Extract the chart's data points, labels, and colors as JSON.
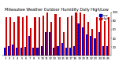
{
  "title": "Milwaukee Weather Outdoor Humidity Daily High/Low",
  "high_values": [
    88,
    88,
    78,
    90,
    88,
    93,
    63,
    88,
    88,
    92,
    100,
    78,
    95,
    88,
    55,
    88,
    92,
    100,
    100,
    95,
    78,
    62,
    88,
    90,
    80,
    88
  ],
  "low_values": [
    18,
    22,
    25,
    18,
    18,
    20,
    45,
    18,
    18,
    22,
    55,
    55,
    18,
    22,
    30,
    18,
    18,
    22,
    75,
    65,
    50,
    45,
    40,
    55,
    22,
    22
  ],
  "labels": [
    "1",
    "2",
    "3",
    "4",
    "5",
    "6",
    "7",
    "8",
    "9",
    "10",
    "11",
    "12",
    "13",
    "14",
    "15",
    "16",
    "17",
    "18",
    "19",
    "20",
    "21",
    "22",
    "23",
    "24",
    "25",
    "26"
  ],
  "high_color": "#cc0000",
  "low_color": "#0000cc",
  "bg_color": "#ffffff",
  "ylim": [
    0,
    100
  ],
  "yticks": [
    20,
    40,
    60,
    80,
    100
  ],
  "dotted_line_x": 17.5,
  "legend_high": "High",
  "legend_low": "Low",
  "bar_width": 0.42,
  "title_fontsize": 3.5,
  "tick_fontsize": 2.8,
  "legend_fontsize": 2.8
}
